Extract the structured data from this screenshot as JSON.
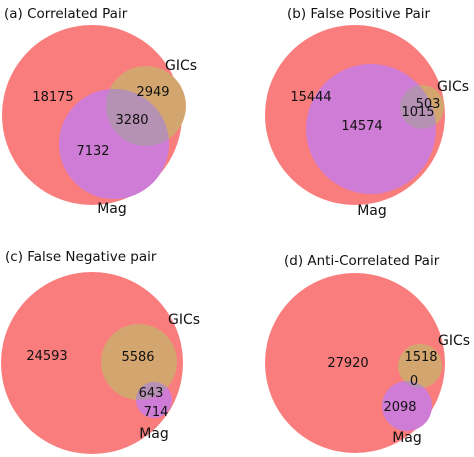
{
  "colors": {
    "all_region": "#fa7d7d",
    "gics_region": "#d4a66f",
    "mag_region": "#cf7cd6",
    "gics_mag_overlap": "#b592b4"
  },
  "panels": [
    {
      "title": "(a) Correlated Pair",
      "all_only": "18175",
      "gics_only": "2949",
      "overlap": "3280",
      "mag_only": "7132",
      "gics_label": "GICs",
      "mag_label": "Mag"
    },
    {
      "title": "(b) False Positive Pair",
      "all_only": "15444",
      "gics_only": "503",
      "overlap": "1015",
      "mag_only": "14574",
      "gics_label": "GICs",
      "mag_label": "Mag"
    },
    {
      "title": "(c) False Negative pair",
      "all_only": "24593",
      "gics_only": "5586",
      "overlap": "643",
      "mag_only": "714",
      "gics_label": "GICs",
      "mag_label": "Mag"
    },
    {
      "title": "(d) Anti-Correlated Pair",
      "all_only": "27920",
      "gics_only": "1518",
      "overlap": "0",
      "mag_only": "2098",
      "gics_label": "GICs",
      "mag_label": "Mag"
    }
  ]
}
